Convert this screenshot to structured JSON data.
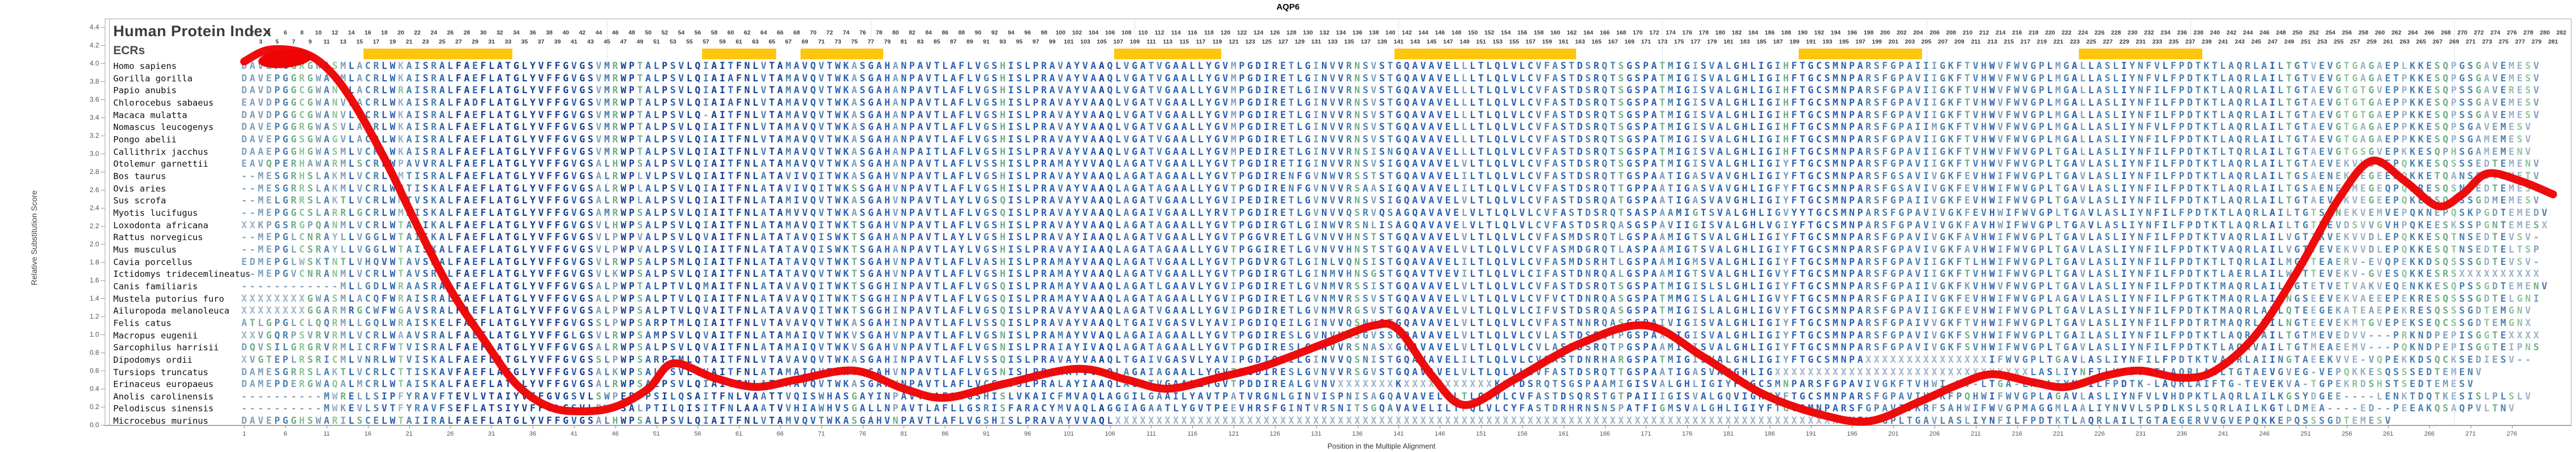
{
  "title": "AQP6",
  "panel": {
    "heading": "Human Protein Index",
    "subheading": "ECRs"
  },
  "y_axis": {
    "label": "Relative Substitution Score",
    "min": 0.0,
    "max": 4.4,
    "step": 0.2
  },
  "x_axis": {
    "label": "Position in the Multiple Alignment",
    "tick_start": 1,
    "tick_step": 5,
    "tick_end": 276
  },
  "ruler": {
    "start": 2,
    "end": 282
  },
  "colors": {
    "ecr": "#ffc60d",
    "curve": "#ee0404",
    "ruler_text": "#3d3d3d",
    "cons_high": "#153f91",
    "cons_mid": "#2b5fae",
    "cons_low": "#4b7fae",
    "var_polar": "#6fae87",
    "var_other": "#7e9fba",
    "very_var_polar": "#8fc49a",
    "very_var_other": "#9ab1c8",
    "x_char": "#9db3c9",
    "gap_char": "#86a8c0"
  },
  "ecr_segments": [
    [
      16,
      33
    ],
    [
      57,
      65
    ],
    [
      69,
      78
    ],
    [
      107,
      119
    ],
    [
      141,
      162
    ],
    [
      190,
      204
    ],
    [
      224,
      238
    ]
  ],
  "chart_data": {
    "type": "line",
    "title": "AQP6",
    "xlabel": "Position in the Multiple Alignment",
    "ylabel": "Relative Substitution Score",
    "xlim": [
      1,
      282
    ],
    "ylim": [
      0.0,
      4.4
    ],
    "grid": "faint dashed vertical lines",
    "legend_position": "none",
    "series": [
      {
        "name": "relative-substitution-score",
        "x": [
          1,
          4,
          8,
          11,
          14,
          18,
          22,
          26,
          30,
          34,
          38,
          42,
          46,
          50,
          53,
          58,
          63,
          68,
          75,
          81,
          86,
          93,
          102,
          108,
          113,
          119,
          125,
          132,
          138,
          141,
          145,
          149,
          155,
          163,
          171,
          178,
          185,
          192,
          198,
          204,
          209,
          213,
          218,
          222,
          227,
          231,
          236,
          240,
          245,
          250,
          255,
          259,
          263,
          267,
          270,
          273,
          277,
          281
        ],
        "y": [
          4.02,
          4.15,
          4.12,
          3.95,
          3.6,
          2.95,
          2.2,
          1.5,
          0.95,
          0.45,
          0.2,
          0.15,
          0.2,
          0.4,
          0.68,
          0.52,
          0.42,
          0.5,
          0.6,
          0.4,
          0.3,
          0.45,
          0.62,
          0.5,
          0.4,
          0.52,
          0.66,
          0.9,
          1.1,
          1.05,
          0.55,
          0.22,
          0.5,
          0.9,
          1.1,
          0.75,
          0.35,
          0.12,
          0.04,
          0.25,
          0.45,
          0.56,
          0.47,
          0.42,
          0.55,
          0.6,
          0.52,
          0.6,
          1.0,
          1.7,
          2.5,
          2.92,
          2.7,
          2.42,
          2.55,
          2.78,
          2.7,
          2.55
        ]
      }
    ],
    "ecr_segments_columns": [
      [
        16,
        33
      ],
      [
        57,
        65
      ],
      [
        69,
        78
      ],
      [
        107,
        119
      ],
      [
        141,
        162
      ],
      [
        190,
        204
      ],
      [
        224,
        238
      ]
    ]
  },
  "alignment": {
    "columns": 282,
    "species": [
      {
        "name": "Homo sapiens",
        "seq": "DAVEPGGRGWASMLACRLWKAISRALFAEFLATGLYVFFGVGSVMRWPTALPSVLQIAITFNLVTAMAVQVTWKASGAHANPAVTLAFLVGSHISLPRAVAYVAAQLVGATVGAALLYGVMPGDIRETLGINVVRNSVSTGQAVAVELLLTLQLVLCVFASTDSRQTSGSPATMIGISVALGHLIGIHFTGCSMNPARSFGPAIIIGKFTVHWVFWVGPLMGALLASLIYNFVLFPDTKTLAQRLAILTGTVEVGTGAGAEPLKKESQPGSGAVEMESV"
      },
      {
        "name": "Gorilla gorilla",
        "seq": "DAVEPGGRGWASMLACRLWKAISRALFAEFLATGLYVFFGVGSVMRWPTALPSVLQIAIAFNLVTAMAVQVTWKASGAHANPAVTLAFLVGSHISLPRAVAYVAAQLVGATVGAALLYGVMPGDIRETLGINVVRNSVSTGQAVAVELLLTLQLVLCVFASTDSRQTSGSPATMIGISVALGHLIGIHFTGCSMNPARSFGPAVIIGKFTVHWVFWVGPLMGALLASLIYNFVLFPDTKTLAQRLAILTGTVEVGTGAGAETPKKESQPGSGAVEMESV"
      },
      {
        "name": "Papio anubis",
        "seq": "DAVDPGGCGWANVLACRLWRAISRALFAEFLATGLYVFFGVGSVMRWPTALPSVLQIAITFNLVTAMAVQVTWKASGAHANPAVTLAFLVGSHISLPRAVAYVAAQLVGATVGAALLYGVMPGDIRETLGINVVRNSVSTGQAVAVELLLTLQLVLCVFASTDSRQTSGSPATMIGISVALGHLIGIHFTGCSMNPARSFGPAVIIGKFTVHWVFWVGPLMGALLASLIYNFILFPDTKTLAQRLAILTGTAEVGTGTGVEPPKKESQPSSGAVERESV"
      },
      {
        "name": "Chlorocebus sabaeus",
        "seq": "EAVDPGGCGWANVLACRLWKAISRALFADFLATGLYVFFGVGSVMRWPTALPSVLQIAIAFNLVTAMAVQVTWKASGAHANPAVTLAFLVGSHISLPRAVAYVAAQLVGATVGAALLYGVMPGDIRETLGINVVRNSVSTGQAVAVELLLTLQLVLCVFASTDSRQTSGSPATMIGISVALGHLIGIHFTGCSMNPARSFGPAVIIGKFTVHWVFWVGPLMGALLASLIYNFILFPDTKTLAQRLAILTGTAEVGTGTGAEPPKKESQPSSGAVEMESV"
      },
      {
        "name": "Macaca mulatta",
        "seq": "DAVDPGGCGWANVLACRLWKAISRALFAEFLATGLYVFFGVGSVMRWPTALPSVLQ-AITFNLVTAMAVQVTWKASGAHANPAVTLAFLVGSHISLPRAVAYVAAQLVGATVGAALLYGVMPGDIRETLGINVVRNSVSTGQAVAVELLLTLQLVLCVFASTDSRQTSGSPATMIGISVALGHLIGIHFTGCSMNPARSFGPAVIIGKFTVHWVFWVGPLMGALLASLIYNFILFPDTKTLAQRLAILTGTAEVGTGTGAEPPKKESQPSSGAVEMESV"
      },
      {
        "name": "Nomascus leucogenys",
        "seq": "DAVEPGGRGWASVLACRLWKAISRALFAEFLATGLYVFFGVGSVMRWPTALPSVLQIAITFNLVTAMAVQVTWKASGAHANPAVTLAFLVGSHISLPRAVAYVAAQLVGATVGAALLYGVMPGDIRETLGINVVRNSVSTGQAVAVELLLTLQLVLCVFASTDSRQTSGSPATMIGISVALGHLIGIHFTGCSMNPARSFGPAIIMGKFTVHWVFWVGPLMGALLASLIYNFVLFPDTKTLAQRLAILTGTAEVGTGAGAEPPKKESQPSGAVEMESV"
      },
      {
        "name": "Pongo abelii",
        "seq": "DAVEPGGSGWAGVLACRLWKAISRALFAEFLATGLYVFFGVGSVMRWPTALPSVLQIAITFNLVTAMAVQVTWKASGAHANPAVTLAFLVGSHISLPRAVAYVAAQLVGATVGAALLYGVMPGDIRETLGINVVRNSVSTGQAVAVELLLTLQLVLCVFASTDSRQTSGSPATMIGISVALGHLIGIHFTGCSMNPARSFGPAVIIGKFTVHWVFWVGPLMGALLASLIYNFILFPDTKTLAQRLAILTGTAEVGTGAGAEPPKKESQPSGAMEMESV"
      },
      {
        "name": "Callithrix jacchus",
        "seq": "DAAEPGGHGWASMLVCRLWKAISRALFAEFLATGLYVFFGVGSVMRWPTALPSVLQIAITFNLVTAMAVQVTWKASGAHANPAITLAFLVGSHISLPRAVAYVAAQLVGATVGAALLYGVMPEDIRETLGINVVRNSISNGQAVAVELLLTLQLVLCVFASTDSRQTSGSPATMIGISVALGHLIGIHFTGCSMNPARSFGPAVIIGKFTVHWVFWVGPLTGALLASLIYNFILFPDTKTLTQRLAILTGTAEVGTGSGVEPKKESQPHSGAMEMENV"
      },
      {
        "name": "Otolemur garnettii",
        "seq": "EAVQPERHAWARMLSCRLWPAVVRALFAEFLATGLYVFFGVGSALHWPSALPSVLQIAITFNLATAMAVQVTWKASGAHANPAVTLAFLVSSHISLPRAMAYVVAQLAGATVGAALLYGVTPGDIRETIGINVVRNSVSIGQAVAVELVLTLQLVLCVFASTDSRQTSGSPATMIGISVALGHLIGIYFTGCSMNPARSFGPAVIIGKFTVHWVFWVGPLTGAVLASLIYNFILFPDTKTLAQRLAILTGTAEVEKVVGVEPQKKESQSSSEDTEMENV"
      },
      {
        "name": "Bos taurus",
        "seq": "--MESGRHSLAKMLVCRLWMTISRALFAEFLATGLYVFFGVGSALRWPLVLPSVLQIAITFNLATAVIVQITWKASGAHVNPAVTLAFLVGSHISLPRAVAYVAAQLAGATAGAALLYGVTPGDIRENFGVNWVRSSTSTGQAVAVELILTLQLVLCVFASTDSRQTTGSPAATIGASVAVGHLIGIYFTGCSMNPARSFGSAVIVGKFEVHWIFWVGPLTGAVLASLIYNFILFPDTKTLAQRLAILTGSAENEKWEGEEPQKKETQANSEDTEMETV"
      },
      {
        "name": "Ovis aries",
        "seq": "--MESGRRSLAKMLVCRLWMTISKALFAEFLATGLYVFFGVGSALRWPLALPSVLQIAITFNLATAVIVQITWKSSGAHVNPAVTLAFLVGSHISLPRAVAYVAAQLAGATAGAALLYGVTPGDIRENFGVNVVRSAASIGQAVAVELILTLQLVLCVFASTDSRQTTGPPAATIGASVAVGHLIGFYFTGCSMNPARSFGSAVIVGKFEVHWIFWVGPLTGAVLASLIYNFILFPDTKTLAQRLAILTGSAENEKMEGEQPQKRESQSNSEDTEMESV"
      },
      {
        "name": "Sus scrofa",
        "seq": "--MELGRRSLAKTLVCRLWMTVSKALFAEFLATGLYVFFGVGSALRWPLALPSVLQIAITFNLATAMIVQVTWKASGAHVNPAVTLAYLVGSQISLPRAVAYVAAQLAGATVGAALLYGVIPEDIRETLGVNVVRNSVSIGQAVAVELVLTLQLVLCVFASTDSRQATGSPAATIGASVAVGHLIGIYFTGCSMNPARSFGPAIIVGKFEVHWIFWVGPLTGAVLASLIYNFILFPDTKTLAQRLAILTGTAEVEKVEGEEPQKEGSQASSGDMEMESV"
      },
      {
        "name": "Myotis lucifugus",
        "seq": "--MEPGGCSLARRLGCRLWMAISKALFAEFLATGLYVFFGVGSAMRWPSALPSVLQIAITFNLATAMVVQVTWKASGAHVNPAVTLAFLVGSQISLPRAVAYVAAQLAGAIVGAALLYRVTPGDIRETLGVNVVQSRVQSAGQAVAVELVLTLQLVLCVFASTDSRQTSASPAAMIGTSVALGHLIGVYYTGCSMNPARSFGPAVIVGKFEVHWIFWVGPLTGAVLASLIYNFILFPDTKTLAQRLAILTGTSENEKVEMVEPQKNEPQSKPGDTEMEDV"
      },
      {
        "name": "Loxodonta africana",
        "seq": "XXKPGSRGPQANMLVCRLWTAIIKALFAEFLATGLYVFFGVGSVLHWPSALPSVLQIAITFNLATAMAVQITWKTSGAHVNPAVTLAFLVGSHISLPRAVAYVAAQLAGATAGAALLYGVTPGDIRGTLGINWVRSNLISAGQAVAVELVLTLQLVLCVFASTDSRQASGSPAVIIGISVALGHLVGIYFTGCSMNPARSFGPAVIVGKFAVHWIFWVGPLTGAVLASLIYNFILFPDTKTLAQRLAILTGTVEVDSVVGVHPQKEESKSSPGNTEMESX"
      },
      {
        "name": "Rattus norvegicus",
        "seq": "--MEPGLCNRAYLLVGGLWTAISKALFAEFLATGLYVFFGVGSVLPWPVALPSVLQVAITFNLATATAVQISWKTSGAHANPAVTLAYLVGSHISLPRAVAYIAAQLAGATVGAALLYGVTPGGVRETLGVNVVHNSTSTGQAVAVELVLTLQLVLCVFASMDSRQTLGSPAAMIGTSVALGHLIGIYFTGCSMNPARSFGPAVIVGKFAVHWIFWVGPLTGAVLASLIYNFILFPDTKTVAQRLAILVGTTKVEKVVDLEPQKKESQTNSEDTEVSV-"
      },
      {
        "name": "Mus musculus",
        "seq": "--MEPGLCSRAYLLVGGLWTAISKALFAEFLATGLYVFFGVGSVLPWPVALPSVLQIAITFNLATATAVQISWKTSGAHANPAVTLAYLVGSHISLPRAVAYIAAQLAGATAGAALLYGVTPGGIRETLGVNVVHNSTSTGQAVAVELVLTLQLVLCVFASMDGRQTLASPAAMIGTSVALGHLIGIYFTGCSMNPARSFGPAVIVGKFAVHWIFWVGPLTGAVLASLIYNFILFPDTKTVAQRLAILVGTTEVEKVVDLEPQKKESQTNSEDTELTSP"
      },
      {
        "name": "Cavia porcellus",
        "seq": "EDMEPGLWSKTNTLVHQVWTAVSKALFAEFLATGLYVFFGVGSVLRWPSALPSMLQIAITFNLATATAVQVTWKTSGAHVNPAVTLAFLVASHISLPRAMAYVAAQLAGATVGAALLYGVTPGDVRGTLGINLVQNSISTGQAVAVELILTLQLVLCVFASMDSRHTLGSPAAMIGMSVALGHLIGIYFTGCSMNPARSFGPAVIIGKFTLHWIFWVGPLTGAVLASLIYNFILFPDTKTLTQRLAILMGTTEAERV-EVQPEKKDSQSSSGDTEVSV-"
      },
      {
        "name": "Ictidomys tridecemlineatus",
        "seq": "--MEPGVCNRANMLVCRLWTAVSRALFAEFLATGLYVFFGVGSVLKWPSALPSVLQIAITFNLATATAVQVTWKTSGAHVNPAVTLAFLVGSHISLPRAMAYVAAQLAGATVGAALLYGVTPGDIRGTLGINMVHNSGSTGQAVTVEVILTLQLVLCIFASTDNRQALGSPAAMIGTSVALGHLIGVYFTGCSMNPARSFGPAVIIGKFTVHWIFWVGPLTGAVLASLIYNFILFPDTKTLAERLAILWGTTEVEKV-GVESQKKESRSXXXXXXXXXX"
      },
      {
        "name": "Canis familiaris",
        "seq": "------------MLLGDLWRAASRALFAEFLATGLYVFFGVGSALPWPTALPTVLQMAITFNLATAVAVQITWKTSGGHINPAVTLAFLVGSQISLPRAMAYVAAQLAGATLGAAVLYGVIPGDIRETLGVNMVRSSISTGQAVAVELVLTLQLVLCVFASTDSRQTSGSPATMIGISLSLGHLIGIYFTGCSMNPARSFGPAIIVGKFKVHWVFWVGPLTGAVLASLIYNFILFPDTKTMAQRLAILWGTETVETVAKVEQENKKESQPSSGDTEMENV"
      },
      {
        "name": "Mustela putorius furo",
        "seq": "XXXXXXXXGWASMLACQFWRAISRALFAEFLATGLYVFFGVGSALPWPSALPTVLQIAITFNLATAVAVQITWKTSGGHINPAVTLAFLVGSQISLPRAMAYVAAQLAGATAGAALLYGVIPGDIRETLGVNMVRSSVSTGQAVAVELVLTLQLVLCVFVCTDNRQASGSPATMMGISLALGHLIGVYFTGCSMNPARSFGPAIIVGKFEVHWIFWVGPLAGAVLASLIYNFILFPGTKTMAQRLAILNGSEEVEKVAEEEPEKRESQSSSGDTELGNI"
      },
      {
        "name": "Ailuropoda melanoleuca",
        "seq": "XXXXXXXXGGARMRGCWFWGAVSRALFAEFLATGLYVFFGVGSALPWPSALPTVLQVAITFNLATAVAVQITWKTSGGHINPAVTLAFLVGSQISLPRAVAYVAAQLAGATVGAALLYGVIPGDIRETLGVNMVRGSVSTGQAVAVELVLTLQLVLCIFVSTDSRQASGSPATMIGISLALGHLIGVYFTGCSMNPARSFGPAVIIGKFEVHWIFWVGPLTGAVLASLIYNFILFPDTKTMAQRLAILQTEEGEKATEAEPEKRESQSSSGDTEMGNV"
      },
      {
        "name": "Felis catus",
        "seq": "ATLGPGLCLQQRMLLGQLWRAISKELFAEFLATGLYVFFGVGSSLPWPSARPTMLQIAITFNLVTAVAVQVTWKASGAHINPAVTLAFLVSSQISLPRAVAYVAAQLTGAIVGASVLYAVIPGDIQEILGINVVQSNVSTGQAVAVELVLTLQLVLCVFASTNNRQASGSPAIVIGISVALGHLIGIYFTGCSMNPARSFGPAIVVGKFTVHWIFWVGPLTGAVLASLIYNFILFPDTRTMAQRLVILNGTEEVEKMTGVEPEKSEQCSSGDTEMGNX"
      },
      {
        "name": "Macropus eugenii",
        "seq": "XXVGQRPSVRVRMLVCRLWAAVSRALFAEFLATGLYVFFGLGSVLRWPSAMPSVLQVAITFNLATAMAIQVTWKVSGAHVNPAVTLAFLVGSNISLPRAMAYVVAQLAGAIAGAALLYGVTPGDIRESLGVNVVRSGVSSGQAVAVELVLTLQLVLCVLASTDSRQTPGSPAXIIGISVALGHLIGIYFTGCSMNPARSFGPAVIVGKFSVHWIFWVGPLTGAILASLIYNFILFPDTKTLAQRLAILTGTMEVEDVV---PRKNDPEPISGGTEXXXX"
      },
      {
        "name": "Sarcophilus harrisii",
        "seq": "DQVSILGRGRVRMLICRFWTVISRALFAEFLATGLYVFFGVGSALRWPSALPSVLQVAITFNLATAMAIQVTWKVSGAHVNPAVTLAFLVGSNISLPRAIAYIVAQLAGATAGAALLYGVTPGDIRESLGVNVVRSNASXGQAVAVELVLTLQLVLCVLASTDSRQTPGSPAAMIGISVALGHLIGIYFTGCSMNPARSFGPAVIVGKFSVHWIFWVGPLTGAVLASLIYNFILFPDTKTLAQRVAILTGTMEAEEMV---PQKNDPEPISGGTEIPNS"
      },
      {
        "name": "Dipodomys ordii",
        "seq": "XVGTEPLRSRICMLVNRLWTVISKALFAEFLATGLYVFFGVGSSLPWPSARPTMLQTAITFNLVTAVAVQVTWKASGAHINPAVTLAFLVSSQISLPRAVAYVAAQLTGAIVGASVLYAVIPGDIQEILGINVVQSNISTGQAVAVELILTLQLVLCVFASTDNRHARGSPATMIGISVALGHLIGIYFTGCSMNPAXXXXXXXXXXXXXXXIFWVGPLTGAVLASLIYNFILFPDTKTVAQRLAIINGTAEEKVVE-VQPEKKDSQCKSEDIESV--"
      },
      {
        "name": "Tursiops truncatus",
        "seq": "DAMESGRRSLAKTLVCRLCTTISKAVFAEFLATGLYVFFGVGSALKWPSALPSVLQVAITFNLATAMAIQVTWKVSGAHVNPAVTLAFLVGSNISLPRAMAYVVAQLAGAIAGAALLYGVTPGDIRESLGVNVVRSGVSTGQAVAVELVLTLQLVLCVFASTDSRQTTGSPAATIGASVAVGHLIGXXXXXXXXXXXXXXXXXXXXXXXXXXXXXXXLASLIYNFILYPDTKTLAQRLAILTGTAEVGVEG-VEPQKKESQSSSEDTEMENV"
      },
      {
        "name": "Erinaceus europaeus",
        "seq": "DAMEPDERGWAQALMCRLWTAISKALFAEFLATGLYVFFGVGSALRWPSALPSVLQIAITFNLATAMAVQVTWKASGAHVNPAVTLAFLVCSQTSLPRALAYIAAQLAGATVGAALLYGVTPDDIREALGVNVXXXXXXXKXXXXXXXXXXXKXTDSRQTSGSPAAMIGISVALGHLIGIYFTGCSMNPARSFGPAVIVGKFTVHWI-WV-LTGA-LASLIYNFILFPDTK-LAQRLAIFTG-TEVEKVA-TGPEKRDSHSTSEDTEMESV"
      },
      {
        "name": "Anolis carolinensis",
        "seq": "----------MWRELLSIPFYRAVFTEVLVTAIYVFFGVGSVLSWPEP-PSILQSAITFNLVAATTVQISWHASGAYINPAVTLAFLVGSHISLVKAICFMVAQLAGGILGAAILYAVTPATVRGNLGINVISPNISAGQAVAVELILTLQLVLCVFASTDSQRSTGTPAIIIGISVALGQVIGRVYFTGCSMNPARSFGPAVIVGKFPQHWIFWVGPLAGAVLASLIYNFVLVHDPKTLAQRLAILKGSYDGEE----LENKTDQTKESISLPLSLV"
      },
      {
        "name": "Pelodiscus sinensis",
        "seq": "----------MWKEVLSVTFYRAVFSEFLATSIYVFFGLGSVLPWPSALPTILQISITFNLAAATVVHIAWHVSGALLNPAVTLAFLLGSRISFARACYMVAQLAGGIAGAATLYGVTPEEVHRSFGINTVRSNITSGQAVAVELILTFQLVLCYFASTDRHRNSNSPATFIGMSVALGHLIGIYFTGCSMNPARSFGPAVIVKRFSAHWIFWVGPMAGGMLAALIYNVVLSPDLKSLSQRLAILKGTLDMEA----ED--PEEAKQSAQPVLTNV"
      },
      {
        "name": "Microcebus murinus",
        "seq": "DAVEPGGHSWARILSCELWTAIIRALFAEFLATGLYVFFGVGSALHWPSALPSVLQIAITFNLVTAMVQVTWKASGAHVNPAVTLAFLVGSHISLPRAVAYVVAQLXXXXXXXXXXXXXXXXXXXXXXXXXXXXXXXXXXXXXXXXXXXXXXXXXXXXXXXXXXXXXXXXXXXXXXXXXXXXXXXXXXXXXXXXXVFWVGPLTGAVLASLIYNFILFPDTKTLAQRLAILTGTAEGERVVGVEPQKKEPQSSSGDTEMESV"
      }
    ]
  }
}
